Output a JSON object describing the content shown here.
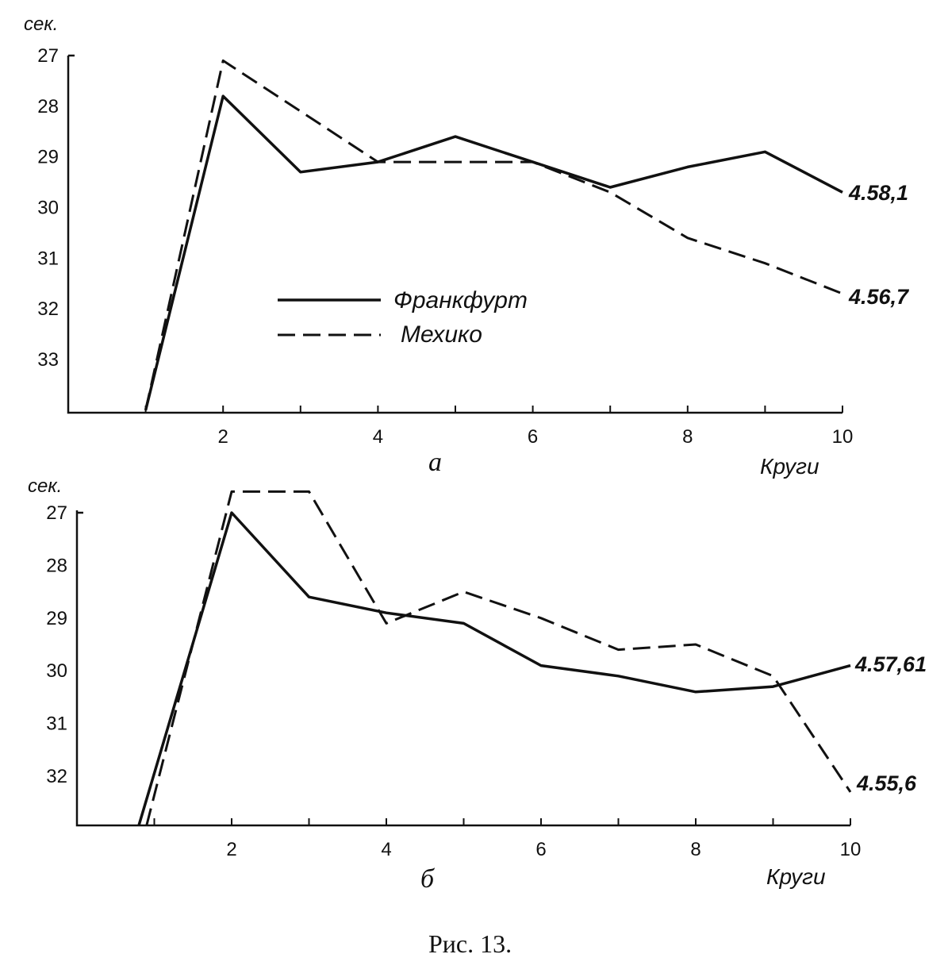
{
  "chart_data": [
    {
      "type": "line",
      "panel_label": "а",
      "y_unit": "сек.",
      "xlabel": "Круги",
      "x_ticks": [
        2,
        4,
        6,
        8,
        10
      ],
      "y_ticks": [
        27,
        28,
        29,
        30,
        31,
        32,
        33
      ],
      "xlim": [
        0,
        10
      ],
      "ylim": [
        34,
        27
      ],
      "y_inverted": true,
      "series": [
        {
          "name": "Франкфурт",
          "style": "solid",
          "x": [
            1,
            2,
            3,
            4,
            5,
            6,
            7,
            8,
            9,
            10
          ],
          "y": [
            34,
            27.8,
            29.3,
            29.1,
            28.6,
            29.1,
            29.6,
            29.2,
            28.9,
            29.7
          ],
          "end_label": "4.58,1"
        },
        {
          "name": "Мехико",
          "style": "dashed",
          "x": [
            1,
            2,
            3,
            4,
            5,
            6,
            7,
            8,
            9,
            10
          ],
          "y": [
            34,
            27.1,
            28.1,
            29.1,
            29.1,
            29.1,
            29.7,
            30.6,
            31.1,
            31.7
          ],
          "end_label": "4.56,7"
        }
      ],
      "legend": [
        "Франкфурт",
        "Мехико"
      ],
      "legend_position": "center"
    },
    {
      "type": "line",
      "panel_label": "б",
      "y_unit": "сек.",
      "xlabel": "Круги",
      "x_ticks": [
        2,
        4,
        6,
        8,
        10
      ],
      "y_ticks": [
        27,
        28,
        29,
        30,
        31,
        32
      ],
      "xlim": [
        0,
        10
      ],
      "ylim": [
        33,
        27
      ],
      "y_inverted": true,
      "series": [
        {
          "name": "Франкфурт",
          "style": "solid",
          "x": [
            0.8,
            2,
            3,
            4,
            5,
            6,
            7,
            8,
            9,
            10
          ],
          "y": [
            33,
            27,
            28.6,
            28.9,
            29.1,
            29.9,
            30.1,
            30.4,
            30.3,
            29.9
          ],
          "end_label": "4.57,61"
        },
        {
          "name": "Мехико",
          "style": "dashed",
          "x": [
            0.9,
            2,
            3,
            4,
            5,
            6,
            7,
            8,
            9,
            10
          ],
          "y": [
            33,
            26.6,
            26.6,
            29.1,
            28.5,
            29.0,
            29.6,
            29.5,
            30.1,
            32.3
          ],
          "end_label": "4.55,6"
        }
      ]
    }
  ],
  "caption": "Рис. 13."
}
